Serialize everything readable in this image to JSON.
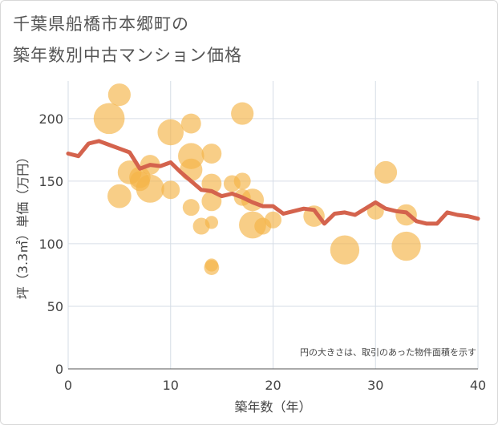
{
  "title_lines": [
    "千葉県船橋市本郷町の",
    "築年数別中古マンション価格"
  ],
  "colors": {
    "bubble": "#f5b347",
    "line": "#d4634d",
    "grid": "#d6dde6",
    "plot_bg": "#ffffff"
  },
  "chart_data": {
    "type": "scatter",
    "title": "千葉県船橋市本郷町の築年数別中古マンション価格",
    "xlabel": "築年数（年）",
    "ylabel": "坪（3.3㎡）単価（万円）",
    "xlim": [
      0,
      40
    ],
    "ylim": [
      0,
      230
    ],
    "x_ticks": [
      0,
      10,
      20,
      30,
      40
    ],
    "y_ticks": [
      0,
      50,
      100,
      150,
      200
    ],
    "grid": true,
    "note": "円の大きさは、取引のあった物件面積を示す",
    "bubbles": [
      {
        "x": 4,
        "y": 200,
        "size": 85
      },
      {
        "x": 5,
        "y": 219,
        "size": 45
      },
      {
        "x": 5,
        "y": 138,
        "size": 50
      },
      {
        "x": 6,
        "y": 157,
        "size": 50
      },
      {
        "x": 7,
        "y": 153,
        "size": 40
      },
      {
        "x": 7,
        "y": 150,
        "size": 35
      },
      {
        "x": 8,
        "y": 163,
        "size": 35
      },
      {
        "x": 8,
        "y": 144,
        "size": 70
      },
      {
        "x": 10,
        "y": 189,
        "size": 60
      },
      {
        "x": 10,
        "y": 143,
        "size": 30
      },
      {
        "x": 12,
        "y": 196,
        "size": 35
      },
      {
        "x": 12,
        "y": 170,
        "size": 60
      },
      {
        "x": 12,
        "y": 159,
        "size": 45
      },
      {
        "x": 12,
        "y": 129,
        "size": 25
      },
      {
        "x": 13,
        "y": 114,
        "size": 25
      },
      {
        "x": 14,
        "y": 172,
        "size": 35
      },
      {
        "x": 14,
        "y": 148,
        "size": 35
      },
      {
        "x": 14,
        "y": 134,
        "size": 35
      },
      {
        "x": 14,
        "y": 117,
        "size": 15
      },
      {
        "x": 14,
        "y": 83,
        "size": 15
      },
      {
        "x": 14,
        "y": 81,
        "size": 20
      },
      {
        "x": 16,
        "y": 148,
        "size": 25
      },
      {
        "x": 17,
        "y": 204,
        "size": 45
      },
      {
        "x": 17,
        "y": 150,
        "size": 25
      },
      {
        "x": 17,
        "y": 137,
        "size": 25
      },
      {
        "x": 18,
        "y": 135,
        "size": 45
      },
      {
        "x": 18,
        "y": 115,
        "size": 65
      },
      {
        "x": 19,
        "y": 114,
        "size": 25
      },
      {
        "x": 20,
        "y": 119,
        "size": 25
      },
      {
        "x": 24,
        "y": 122,
        "size": 40
      },
      {
        "x": 27,
        "y": 95,
        "size": 75
      },
      {
        "x": 30,
        "y": 126,
        "size": 25
      },
      {
        "x": 31,
        "y": 157,
        "size": 45
      },
      {
        "x": 33,
        "y": 123,
        "size": 40
      },
      {
        "x": 33,
        "y": 98,
        "size": 75
      }
    ],
    "trend_line": {
      "x": [
        0,
        1,
        2,
        3,
        4,
        5,
        6,
        7,
        8,
        9,
        10,
        11,
        12,
        13,
        14,
        15,
        16,
        17,
        18,
        19,
        20,
        21,
        22,
        23,
        24,
        25,
        26,
        27,
        28,
        29,
        30,
        31,
        32,
        33,
        34,
        35,
        36,
        37,
        38,
        39,
        40
      ],
      "y": [
        172,
        170,
        180,
        182,
        179,
        176,
        173,
        160,
        163,
        162,
        165,
        157,
        150,
        143,
        142,
        138,
        140,
        137,
        133,
        130,
        130,
        124,
        126,
        128,
        127,
        116,
        124,
        125,
        123,
        128,
        133,
        128,
        126,
        125,
        118,
        116,
        116,
        125,
        123,
        122,
        120
      ]
    }
  }
}
